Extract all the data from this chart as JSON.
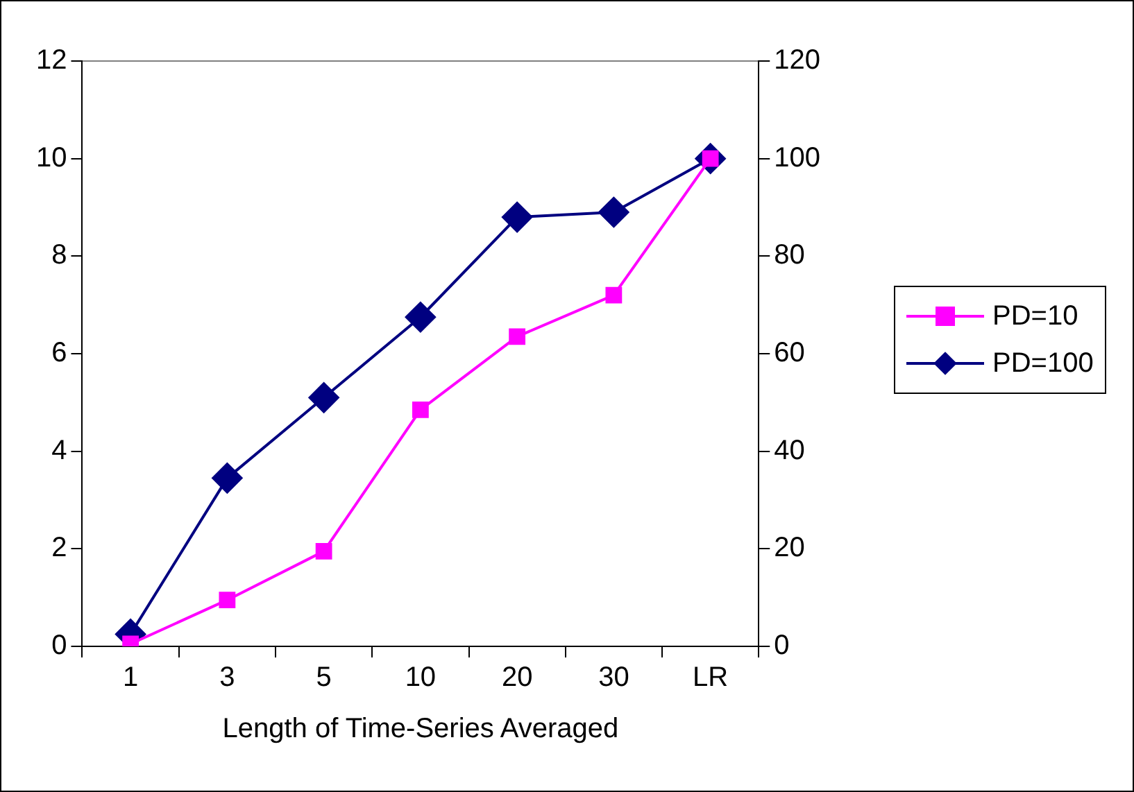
{
  "chart_data": {
    "type": "line",
    "xlabel": "Length of Time-Series Averaged",
    "categories": [
      "1",
      "3",
      "5",
      "10",
      "20",
      "30",
      "LR"
    ],
    "ylim": [
      0,
      12
    ],
    "yticks": [
      0,
      2,
      4,
      6,
      8,
      10,
      12
    ],
    "y2lim": [
      0,
      120
    ],
    "y2ticks": [
      0,
      20,
      40,
      60,
      80,
      100,
      120
    ],
    "series": [
      {
        "name": "PD=10",
        "color": "#ff00ff",
        "marker": "square",
        "values": [
          0.05,
          0.95,
          1.95,
          4.85,
          6.35,
          7.2,
          10
        ]
      },
      {
        "name": "PD=100",
        "color": "#000080",
        "marker": "diamond",
        "axis": "y2",
        "values": [
          2.5,
          34.5,
          51,
          67.5,
          88,
          89,
          100
        ]
      }
    ],
    "grid": false,
    "legend": "right"
  }
}
